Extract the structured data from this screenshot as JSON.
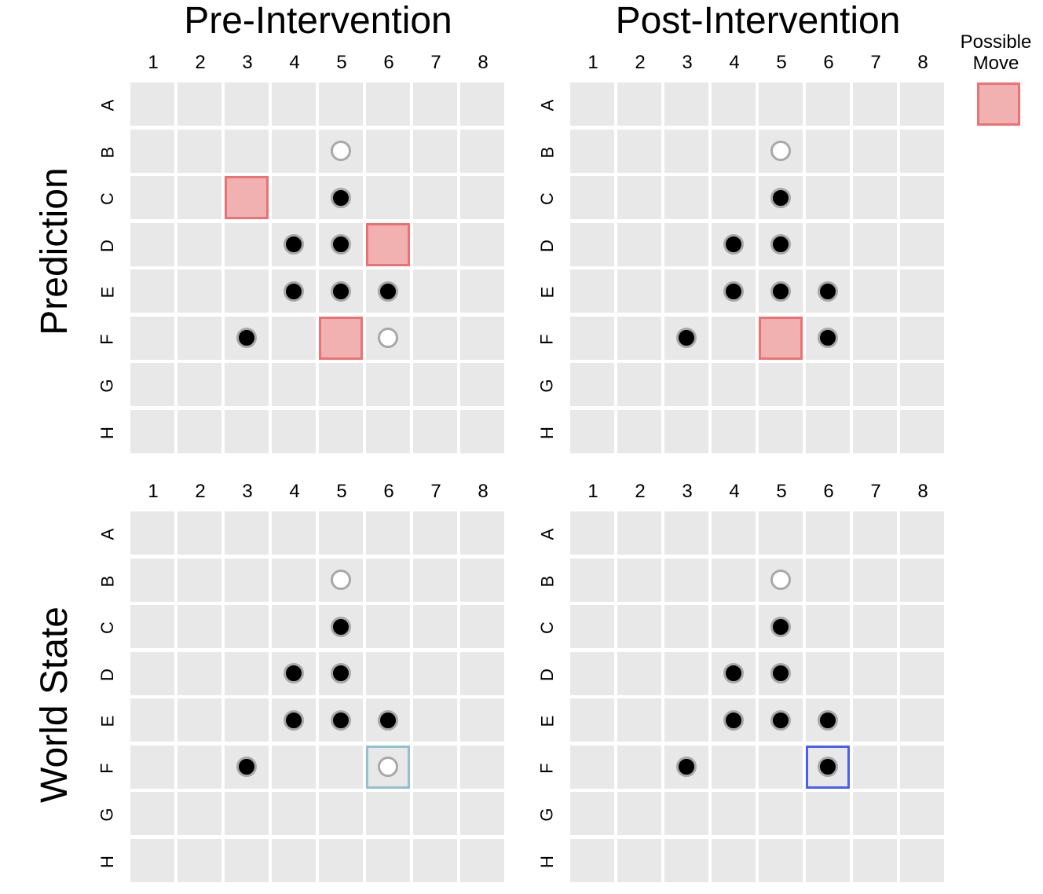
{
  "column_titles": [
    "Pre-Intervention",
    "Post-Intervention"
  ],
  "row_titles": [
    "Prediction",
    "World State"
  ],
  "legend": {
    "label": "Possible Move",
    "color": "#f2b1b1",
    "border_color": "#ec7272"
  },
  "columns": [
    "1",
    "2",
    "3",
    "4",
    "5",
    "6",
    "7",
    "8"
  ],
  "rows": [
    "A",
    "B",
    "C",
    "D",
    "E",
    "F",
    "G",
    "H"
  ],
  "colors": {
    "cell": "#e8e8e8",
    "black_piece": "#000000",
    "white_piece": "#ffffff",
    "piece_ring": "#a8a8a8"
  },
  "boards": [
    {
      "name": "prediction-pre-intervention",
      "pieces": {
        "black": [
          "C5",
          "D4",
          "D5",
          "E4",
          "E5",
          "E6",
          "F3"
        ],
        "white": [
          "B5",
          "F6"
        ]
      },
      "possible_moves": [
        "C3",
        "D6",
        "F5"
      ],
      "highlight": null
    },
    {
      "name": "prediction-post-intervention",
      "pieces": {
        "black": [
          "C5",
          "D4",
          "D5",
          "E4",
          "E5",
          "E6",
          "F3",
          "F6"
        ],
        "white": [
          "B5"
        ]
      },
      "possible_moves": [
        "F5"
      ],
      "highlight": null
    },
    {
      "name": "world-state-pre-intervention",
      "pieces": {
        "black": [
          "C5",
          "D4",
          "D5",
          "E4",
          "E5",
          "E6",
          "F3"
        ],
        "white": [
          "B5",
          "F6"
        ]
      },
      "possible_moves": [],
      "highlight": {
        "cell": "F6",
        "color": "#93bfd0"
      }
    },
    {
      "name": "world-state-post-intervention",
      "pieces": {
        "black": [
          "C5",
          "D4",
          "D5",
          "E4",
          "E5",
          "E6",
          "F3",
          "F6"
        ],
        "white": [
          "B5"
        ]
      },
      "possible_moves": [],
      "highlight": {
        "cell": "F6",
        "color": "#4a5ff0"
      }
    }
  ]
}
